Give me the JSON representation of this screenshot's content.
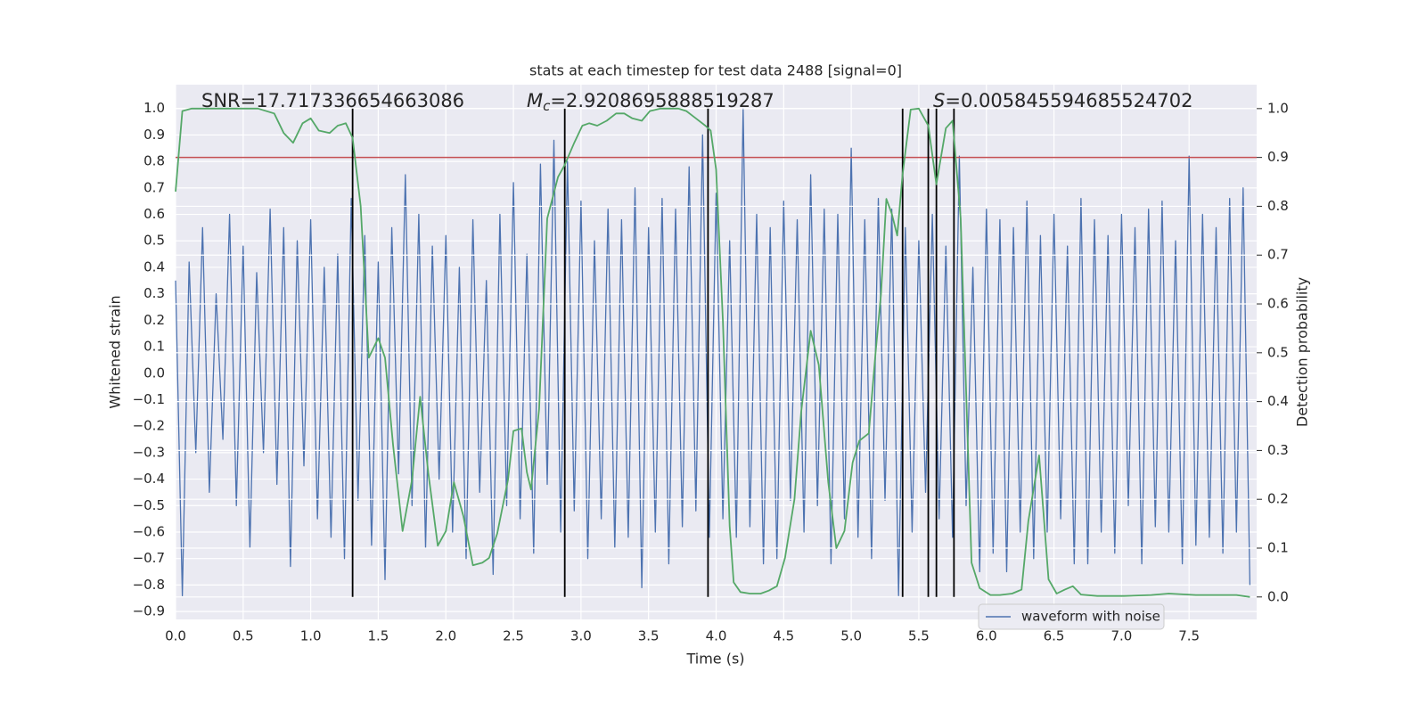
{
  "chart_data": {
    "type": "line",
    "title": "stats at each timestep for test data 2488 [signal=0]",
    "xlabel": "Time (s)",
    "ylabel": "Whitened strain",
    "y2label": "Detection probability",
    "xlim": [
      0,
      8.0
    ],
    "ylim": [
      -0.93,
      1.09
    ],
    "y2lim": [
      -0.046,
      1.049
    ],
    "grid": true,
    "legend": "lower right",
    "xticks": [
      {
        "value": 0,
        "label": "0.0"
      },
      0.5,
      {
        "value": 1,
        "label": "1.0"
      },
      1.5,
      {
        "value": 2,
        "label": "2.0"
      },
      2.5,
      {
        "value": 3,
        "label": "3.0"
      },
      3.5,
      {
        "value": 4,
        "label": "4.0"
      },
      4.5,
      {
        "value": 5,
        "label": "5.0"
      },
      5.5,
      {
        "value": 6,
        "label": "6.0"
      },
      6.5,
      {
        "value": 7,
        "label": "7.0"
      },
      7.5
    ],
    "yticks": [
      {
        "value": 1,
        "label": "1.0"
      },
      0.9,
      0.8,
      0.7,
      0.6,
      0.5,
      0.4,
      0.3,
      0.2,
      0.1,
      {
        "value": 0,
        "label": "0.0"
      },
      {
        "value": -0.1,
        "label": "−0.1"
      },
      {
        "value": -0.2,
        "label": "−0.2"
      },
      {
        "value": -0.3,
        "label": "−0.3"
      },
      {
        "value": -0.4,
        "label": "−0.4"
      },
      {
        "value": -0.5,
        "label": "−0.5"
      },
      {
        "value": -0.6,
        "label": "−0.6"
      },
      {
        "value": -0.7,
        "label": "−0.7"
      },
      {
        "value": -0.8,
        "label": "−0.8"
      },
      {
        "value": -0.9,
        "label": "−0.9"
      }
    ],
    "y2ticks": [
      {
        "value": 0,
        "label": "0.0"
      },
      0.1,
      0.2,
      0.3,
      0.4,
      0.5,
      0.6,
      0.7,
      0.8,
      0.9,
      {
        "value": 1,
        "label": "1.0"
      }
    ],
    "series": [
      {
        "name": "waveform with noise",
        "color": "#4c72b0",
        "x": [
          0,
          0.05,
          0.1,
          0.15,
          0.2,
          0.25,
          0.3,
          0.35,
          0.4,
          0.45,
          0.5,
          0.55,
          0.6,
          0.65,
          0.7,
          0.75,
          0.8,
          0.85,
          0.9,
          0.95,
          1,
          1.05,
          1.1,
          1.15,
          1.2,
          1.25,
          1.3,
          1.35,
          1.4,
          1.45,
          1.5,
          1.55,
          1.6,
          1.65,
          1.7,
          1.75,
          1.8,
          1.85,
          1.9,
          1.95,
          2,
          2.05,
          2.1,
          2.15,
          2.2,
          2.25,
          2.3,
          2.35,
          2.4,
          2.45,
          2.5,
          2.55,
          2.6,
          2.65,
          2.7,
          2.75,
          2.8,
          2.85,
          2.9,
          2.95,
          3,
          3.05,
          3.1,
          3.15,
          3.2,
          3.25,
          3.3,
          3.35,
          3.4,
          3.45,
          3.5,
          3.55,
          3.6,
          3.65,
          3.7,
          3.75,
          3.8,
          3.85,
          3.9,
          3.95,
          4,
          4.05,
          4.1,
          4.15,
          4.2,
          4.25,
          4.3,
          4.35,
          4.4,
          4.45,
          4.5,
          4.55,
          4.6,
          4.65,
          4.7,
          4.75,
          4.8,
          4.85,
          4.9,
          4.95,
          5,
          5.05,
          5.1,
          5.15,
          5.2,
          5.25,
          5.3,
          5.35,
          5.4,
          5.45,
          5.5,
          5.55,
          5.6,
          5.65,
          5.7,
          5.75,
          5.8,
          5.85,
          5.9,
          5.95,
          6,
          6.05,
          6.1,
          6.15,
          6.2,
          6.25,
          6.3,
          6.35,
          6.4,
          6.45,
          6.5,
          6.55,
          6.6,
          6.65,
          6.7,
          6.75,
          6.8,
          6.85,
          6.9,
          6.95,
          7,
          7.05,
          7.1,
          7.15,
          7.2,
          7.25,
          7.3,
          7.35,
          7.4,
          7.45,
          7.5,
          7.55,
          7.6,
          7.65,
          7.7,
          7.75,
          7.8,
          7.85,
          7.9,
          7.95
        ],
        "values": [
          0.35,
          -0.84,
          0.42,
          -0.3,
          0.55,
          -0.45,
          0.3,
          -0.25,
          0.6,
          -0.5,
          0.48,
          -0.66,
          0.38,
          -0.3,
          0.62,
          -0.42,
          0.55,
          -0.73,
          0.5,
          -0.35,
          0.58,
          -0.55,
          0.4,
          -0.62,
          0.45,
          -0.7,
          0.66,
          -0.48,
          0.52,
          -0.65,
          0.42,
          -0.78,
          0.55,
          -0.38,
          0.75,
          -0.5,
          0.6,
          -0.66,
          0.48,
          -0.4,
          0.52,
          -0.6,
          0.4,
          -0.7,
          0.58,
          -0.45,
          0.35,
          -0.76,
          0.6,
          -0.5,
          0.72,
          -0.55,
          0.45,
          -0.68,
          0.79,
          -0.42,
          0.88,
          -0.6,
          0.8,
          -0.52,
          0.65,
          -0.7,
          0.5,
          -0.55,
          0.62,
          -0.66,
          0.58,
          -0.62,
          0.7,
          -0.81,
          0.55,
          -0.6,
          0.66,
          -0.72,
          0.62,
          -0.58,
          0.78,
          -0.52,
          0.9,
          -0.62,
          0.68,
          -0.55,
          0.5,
          -0.62,
          1.0,
          -0.58,
          0.6,
          -0.72,
          0.55,
          -0.7,
          0.65,
          -0.48,
          0.58,
          -0.6,
          0.75,
          -0.5,
          0.62,
          -0.72,
          0.6,
          -0.55,
          0.85,
          -0.62,
          0.58,
          -0.7,
          0.66,
          -0.48,
          0.62,
          -0.84,
          0.55,
          -0.6,
          0.5,
          -0.45,
          0.6,
          -0.55,
          0.48,
          -0.62,
          0.82,
          -0.5,
          0.4,
          -0.75,
          0.62,
          -0.68,
          0.58,
          -0.75,
          0.55,
          -0.6,
          0.65,
          -0.7,
          0.52,
          -0.6,
          0.6,
          -0.55,
          0.48,
          -0.72,
          0.66,
          -0.72,
          0.58,
          -0.6,
          0.52,
          -0.68,
          0.6,
          -0.5,
          0.55,
          -0.72,
          0.62,
          -0.58,
          0.65,
          -0.6,
          0.5,
          -0.72,
          0.82,
          -0.65,
          0.6,
          -0.62,
          0.55,
          -0.68,
          0.66,
          -0.6,
          0.7,
          -0.8
        ]
      },
      {
        "color": "#55a868",
        "axis": "y2",
        "x": [
          0,
          0.05,
          0.12,
          0.61,
          0.73,
          0.8,
          0.87,
          0.94,
          1,
          1.06,
          1.14,
          1.2,
          1.26,
          1.31,
          1.37,
          1.43,
          1.5,
          1.55,
          1.61,
          1.68,
          1.75,
          1.81,
          1.87,
          1.94,
          2,
          2.06,
          2.13,
          2.2,
          2.27,
          2.32,
          2.38,
          2.46,
          2.5,
          2.56,
          2.6,
          2.63,
          2.69,
          2.75,
          2.83,
          2.88,
          2.95,
          3.01,
          3.06,
          3.12,
          3.19,
          3.26,
          3.32,
          3.38,
          3.45,
          3.51,
          3.59,
          3.72,
          3.78,
          3.85,
          3.92,
          3.96,
          4,
          4.05,
          4.1,
          4.13,
          4.18,
          4.25,
          4.33,
          4.39,
          4.45,
          4.51,
          4.58,
          4.63,
          4.7,
          4.76,
          4.83,
          4.89,
          4.95,
          5.01,
          5.06,
          5.13,
          5.18,
          5.22,
          5.26,
          5.3,
          5.34,
          5.38,
          5.44,
          5.5,
          5.57,
          5.63,
          5.7,
          5.75,
          5.81,
          5.89,
          5.95,
          6.03,
          6.1,
          6.19,
          6.26,
          6.31,
          6.39,
          6.46,
          6.52,
          6.58,
          6.64,
          6.7,
          6.82,
          7.02,
          7.22,
          7.35,
          7.55,
          7.85,
          7.95
        ],
        "values": [
          0.83,
          0.995,
          1.0,
          1.0,
          0.99,
          0.95,
          0.93,
          0.97,
          0.98,
          0.955,
          0.95,
          0.965,
          0.97,
          0.94,
          0.8,
          0.49,
          0.53,
          0.49,
          0.31,
          0.135,
          0.24,
          0.41,
          0.255,
          0.105,
          0.135,
          0.235,
          0.165,
          0.065,
          0.07,
          0.08,
          0.13,
          0.24,
          0.34,
          0.345,
          0.255,
          0.22,
          0.385,
          0.775,
          0.86,
          0.885,
          0.93,
          0.965,
          0.97,
          0.965,
          0.975,
          0.99,
          0.99,
          0.98,
          0.975,
          0.995,
          1.0,
          1.0,
          0.995,
          0.98,
          0.965,
          0.955,
          0.875,
          0.565,
          0.145,
          0.03,
          0.01,
          0.007,
          0.007,
          0.013,
          0.022,
          0.08,
          0.2,
          0.38,
          0.545,
          0.475,
          0.235,
          0.1,
          0.135,
          0.275,
          0.32,
          0.335,
          0.5,
          0.62,
          0.815,
          0.785,
          0.74,
          0.865,
          0.998,
          1.0,
          0.965,
          0.845,
          0.96,
          0.975,
          0.775,
          0.07,
          0.018,
          0.004,
          0.004,
          0.007,
          0.015,
          0.155,
          0.29,
          0.036,
          0.007,
          0.015,
          0.022,
          0.005,
          0.002,
          0.002,
          0.004,
          0.007,
          0.004,
          0.004,
          0.0
        ]
      }
    ],
    "hlines": [
      {
        "y": 0.9,
        "axis": "y2",
        "color": "#c44e52"
      }
    ],
    "vlines": {
      "x": [
        1.31,
        2.88,
        3.94,
        5.38,
        5.57,
        5.63,
        5.76
      ],
      "ymin": 0,
      "ymax": 1,
      "axis": "y2",
      "color": "#000000"
    },
    "annotations": [
      {
        "text": "SNR=17.717336654663086"
      },
      {
        "symbol": "M",
        "subscript": "c",
        "text": "=2.9208695888519287"
      },
      {
        "symbol": "S",
        "text": "=0.005845594685524702"
      }
    ]
  }
}
